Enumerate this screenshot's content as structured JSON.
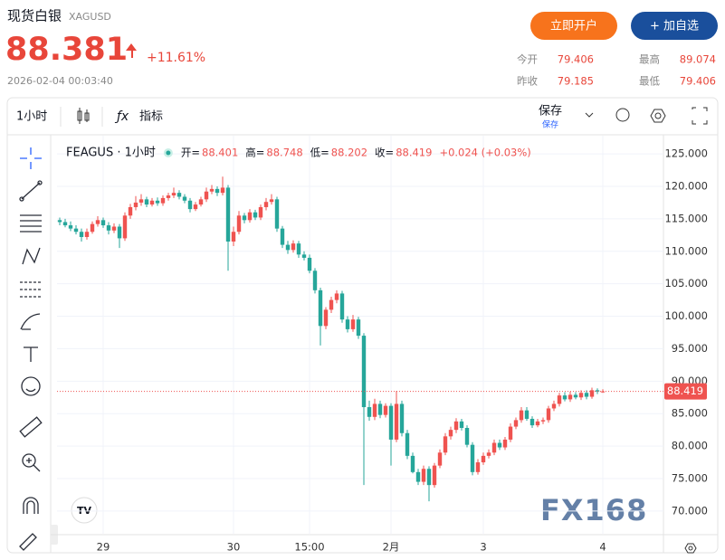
{
  "header": {
    "title": "现货白银",
    "symbol": "XAGUSD",
    "price": "88.381",
    "change": "+11.61%",
    "time": "2026-02-04 00:03:40",
    "buttons": [
      "立即开户",
      "+ 加自选"
    ],
    "stats": [
      {
        "label": "今开",
        "value": "79.406"
      },
      {
        "label": "最高",
        "value": "89.074"
      },
      {
        "label": "昨收",
        "value": "79.185"
      },
      {
        "label": "最低",
        "value": "79.406"
      }
    ]
  },
  "toolbar": {
    "interval": "1小时",
    "indicators": "指标",
    "save": "保存",
    "save_sub": "保存"
  },
  "watermark": "FX168",
  "chart_data": {
    "type": "candlestick",
    "name": "FEAGUS · 1小时",
    "legend": {
      "open": "开=",
      "high": "高=",
      "low": "低=",
      "close": "收=",
      "change": "+0.024 (+0.03%)"
    },
    "up_color": "#ef5350",
    "down_color": "#26a69a",
    "categories": [
      null,
      null,
      null,
      null,
      null,
      null,
      null,
      null,
      "29",
      null,
      null,
      null,
      null,
      null,
      null,
      null,
      null,
      null,
      null,
      null,
      null,
      null,
      null,
      null,
      null,
      null,
      null,
      null,
      null,
      null,
      null,
      null,
      "30",
      null,
      null,
      null,
      null,
      null,
      null,
      null,
      null,
      null,
      null,
      null,
      null,
      null,
      "15:00",
      null,
      null,
      null,
      null,
      null,
      null,
      null,
      null,
      null,
      null,
      null,
      null,
      null,
      null,
      "2月",
      null,
      null,
      null,
      null,
      null,
      null,
      null,
      null,
      null,
      null,
      null,
      null,
      null,
      null,
      null,
      null,
      "3",
      null,
      null,
      null,
      null,
      null,
      null,
      null,
      null,
      null,
      null,
      null,
      null,
      null,
      null,
      null,
      null,
      null,
      null,
      null,
      null,
      null,
      "4"
    ],
    "open": [
      114.8,
      114.5,
      114.0,
      113.5,
      113.0,
      112.2,
      113.0,
      114.2,
      114.8,
      114.0,
      113.2,
      113.8,
      112.0,
      115.5,
      116.8,
      117.5,
      118.0,
      117.2,
      117.8,
      117.4,
      118.2,
      118.6,
      119.0,
      118.4,
      117.8,
      116.5,
      117.2,
      118.0,
      119.2,
      119.6,
      119.0,
      119.8,
      111.5,
      113.0,
      115.5,
      114.8,
      116.0,
      115.2,
      116.8,
      117.6,
      118.0,
      113.5,
      111.0,
      110.2,
      111.2,
      109.5,
      109.0,
      107.0,
      104.0,
      98.5,
      101.0,
      102.5,
      103.5,
      99.5,
      98.0,
      99.5,
      97.0,
      86.0,
      84.5,
      86.5,
      84.8,
      86.2,
      81.0,
      86.5,
      82.0,
      78.5,
      76.0,
      74.5,
      76.5,
      74.0,
      77.0,
      79.0,
      81.5,
      82.5,
      83.8,
      82.8,
      80.2,
      76.0,
      77.5,
      78.5,
      79.0,
      80.5,
      79.8,
      81.0,
      83.0,
      84.0,
      85.5,
      84.2,
      83.2,
      83.8,
      84.0,
      85.8,
      86.5,
      87.8,
      87.2,
      87.9,
      87.5,
      88.2,
      87.6,
      88.6,
      88.401
    ],
    "high": [
      115.2,
      115.0,
      114.6,
      114.0,
      113.5,
      113.5,
      114.6,
      115.4,
      115.2,
      114.5,
      114.3,
      114.2,
      116.0,
      117.3,
      118.5,
      118.8,
      118.4,
      118.2,
      118.3,
      118.6,
      119.0,
      119.8,
      119.4,
      118.8,
      118.2,
      117.6,
      118.4,
      119.8,
      120.2,
      120.0,
      121.5,
      120.2,
      113.8,
      116.2,
      115.9,
      116.5,
      116.4,
      117.2,
      118.2,
      118.8,
      118.4,
      113.9,
      111.6,
      111.7,
      111.6,
      110.0,
      109.5,
      107.4,
      104.4,
      101.4,
      103.0,
      104.0,
      103.9,
      100.0,
      100.2,
      99.9,
      97.4,
      87.0,
      87.3,
      87.0,
      86.6,
      86.6,
      88.5,
      87.0,
      82.5,
      79.0,
      76.5,
      77.0,
      76.9,
      77.4,
      79.5,
      82.0,
      83.0,
      84.3,
      84.2,
      83.2,
      80.6,
      78.0,
      79.0,
      79.5,
      81.0,
      81.0,
      81.4,
      83.5,
      84.4,
      86.0,
      86.0,
      84.6,
      84.2,
      84.4,
      86.2,
      87.0,
      88.2,
      88.3,
      88.4,
      88.3,
      88.6,
      88.6,
      89.0,
      88.9,
      88.748
    ],
    "low": [
      114.0,
      113.7,
      113.1,
      112.6,
      111.5,
      111.8,
      112.7,
      113.8,
      113.6,
      112.6,
      112.8,
      110.5,
      111.6,
      115.0,
      116.3,
      117.0,
      116.8,
      116.9,
      117.0,
      117.0,
      117.8,
      118.2,
      118.0,
      117.4,
      116.0,
      116.2,
      116.9,
      117.6,
      118.8,
      118.5,
      118.6,
      107.0,
      110.8,
      112.6,
      114.3,
      114.4,
      114.8,
      114.8,
      116.3,
      117.2,
      113.0,
      110.5,
      109.6,
      109.8,
      109.0,
      108.6,
      106.6,
      103.5,
      95.5,
      98.0,
      100.5,
      102.0,
      99.0,
      97.5,
      97.6,
      96.5,
      74.0,
      83.9,
      84.0,
      84.3,
      84.4,
      77.0,
      80.6,
      81.5,
      78.0,
      75.8,
      74.0,
      74.0,
      71.5,
      73.6,
      76.6,
      78.6,
      81.0,
      82.0,
      82.4,
      79.8,
      75.5,
      75.6,
      77.1,
      78.1,
      78.6,
      79.4,
      79.4,
      80.6,
      82.6,
      83.6,
      83.9,
      82.8,
      82.9,
      83.4,
      83.6,
      85.4,
      86.1,
      86.9,
      86.8,
      87.2,
      87.1,
      87.2,
      87.3,
      88.0,
      88.202
    ],
    "close": [
      114.5,
      114.0,
      113.5,
      113.0,
      112.2,
      113.0,
      114.2,
      114.8,
      114.0,
      113.2,
      113.8,
      112.0,
      115.5,
      116.8,
      117.5,
      118.0,
      117.2,
      117.8,
      117.4,
      118.2,
      118.6,
      119.0,
      118.4,
      117.8,
      116.5,
      117.2,
      118.0,
      119.2,
      119.6,
      119.0,
      119.8,
      111.5,
      113.0,
      115.5,
      114.8,
      116.0,
      115.2,
      116.8,
      117.6,
      118.0,
      113.5,
      111.0,
      110.2,
      111.2,
      109.5,
      109.0,
      107.0,
      104.0,
      98.5,
      101.0,
      102.5,
      103.5,
      99.5,
      98.0,
      99.5,
      97.0,
      86.0,
      84.5,
      86.5,
      84.8,
      86.2,
      81.0,
      86.5,
      82.0,
      78.5,
      76.0,
      74.5,
      76.5,
      74.0,
      77.0,
      79.0,
      81.5,
      82.5,
      83.8,
      82.8,
      80.2,
      76.0,
      77.5,
      78.5,
      79.0,
      80.5,
      79.8,
      81.0,
      83.0,
      84.0,
      85.5,
      84.2,
      83.2,
      83.8,
      84.0,
      85.8,
      86.5,
      87.8,
      87.2,
      87.9,
      87.5,
      88.2,
      87.6,
      88.6,
      88.401,
      88.419
    ],
    "ylim": [
      66.5,
      127.8
    ],
    "yticks": [
      {
        "value": 70,
        "label": "70.000"
      },
      {
        "value": 75,
        "label": "75.000"
      },
      {
        "value": 80,
        "label": "80.000"
      },
      {
        "value": 85,
        "label": "85.000"
      },
      {
        "value": 90,
        "label": "90.000"
      },
      {
        "value": 95,
        "label": "95.000"
      },
      {
        "value": 100,
        "label": "100.000"
      },
      {
        "value": 105,
        "label": "105.000"
      },
      {
        "value": 110,
        "label": "110.000"
      },
      {
        "value": 115,
        "label": "115.000"
      },
      {
        "value": 120,
        "label": "120.000"
      },
      {
        "value": 125,
        "label": "125.000"
      }
    ],
    "grid": true
  }
}
